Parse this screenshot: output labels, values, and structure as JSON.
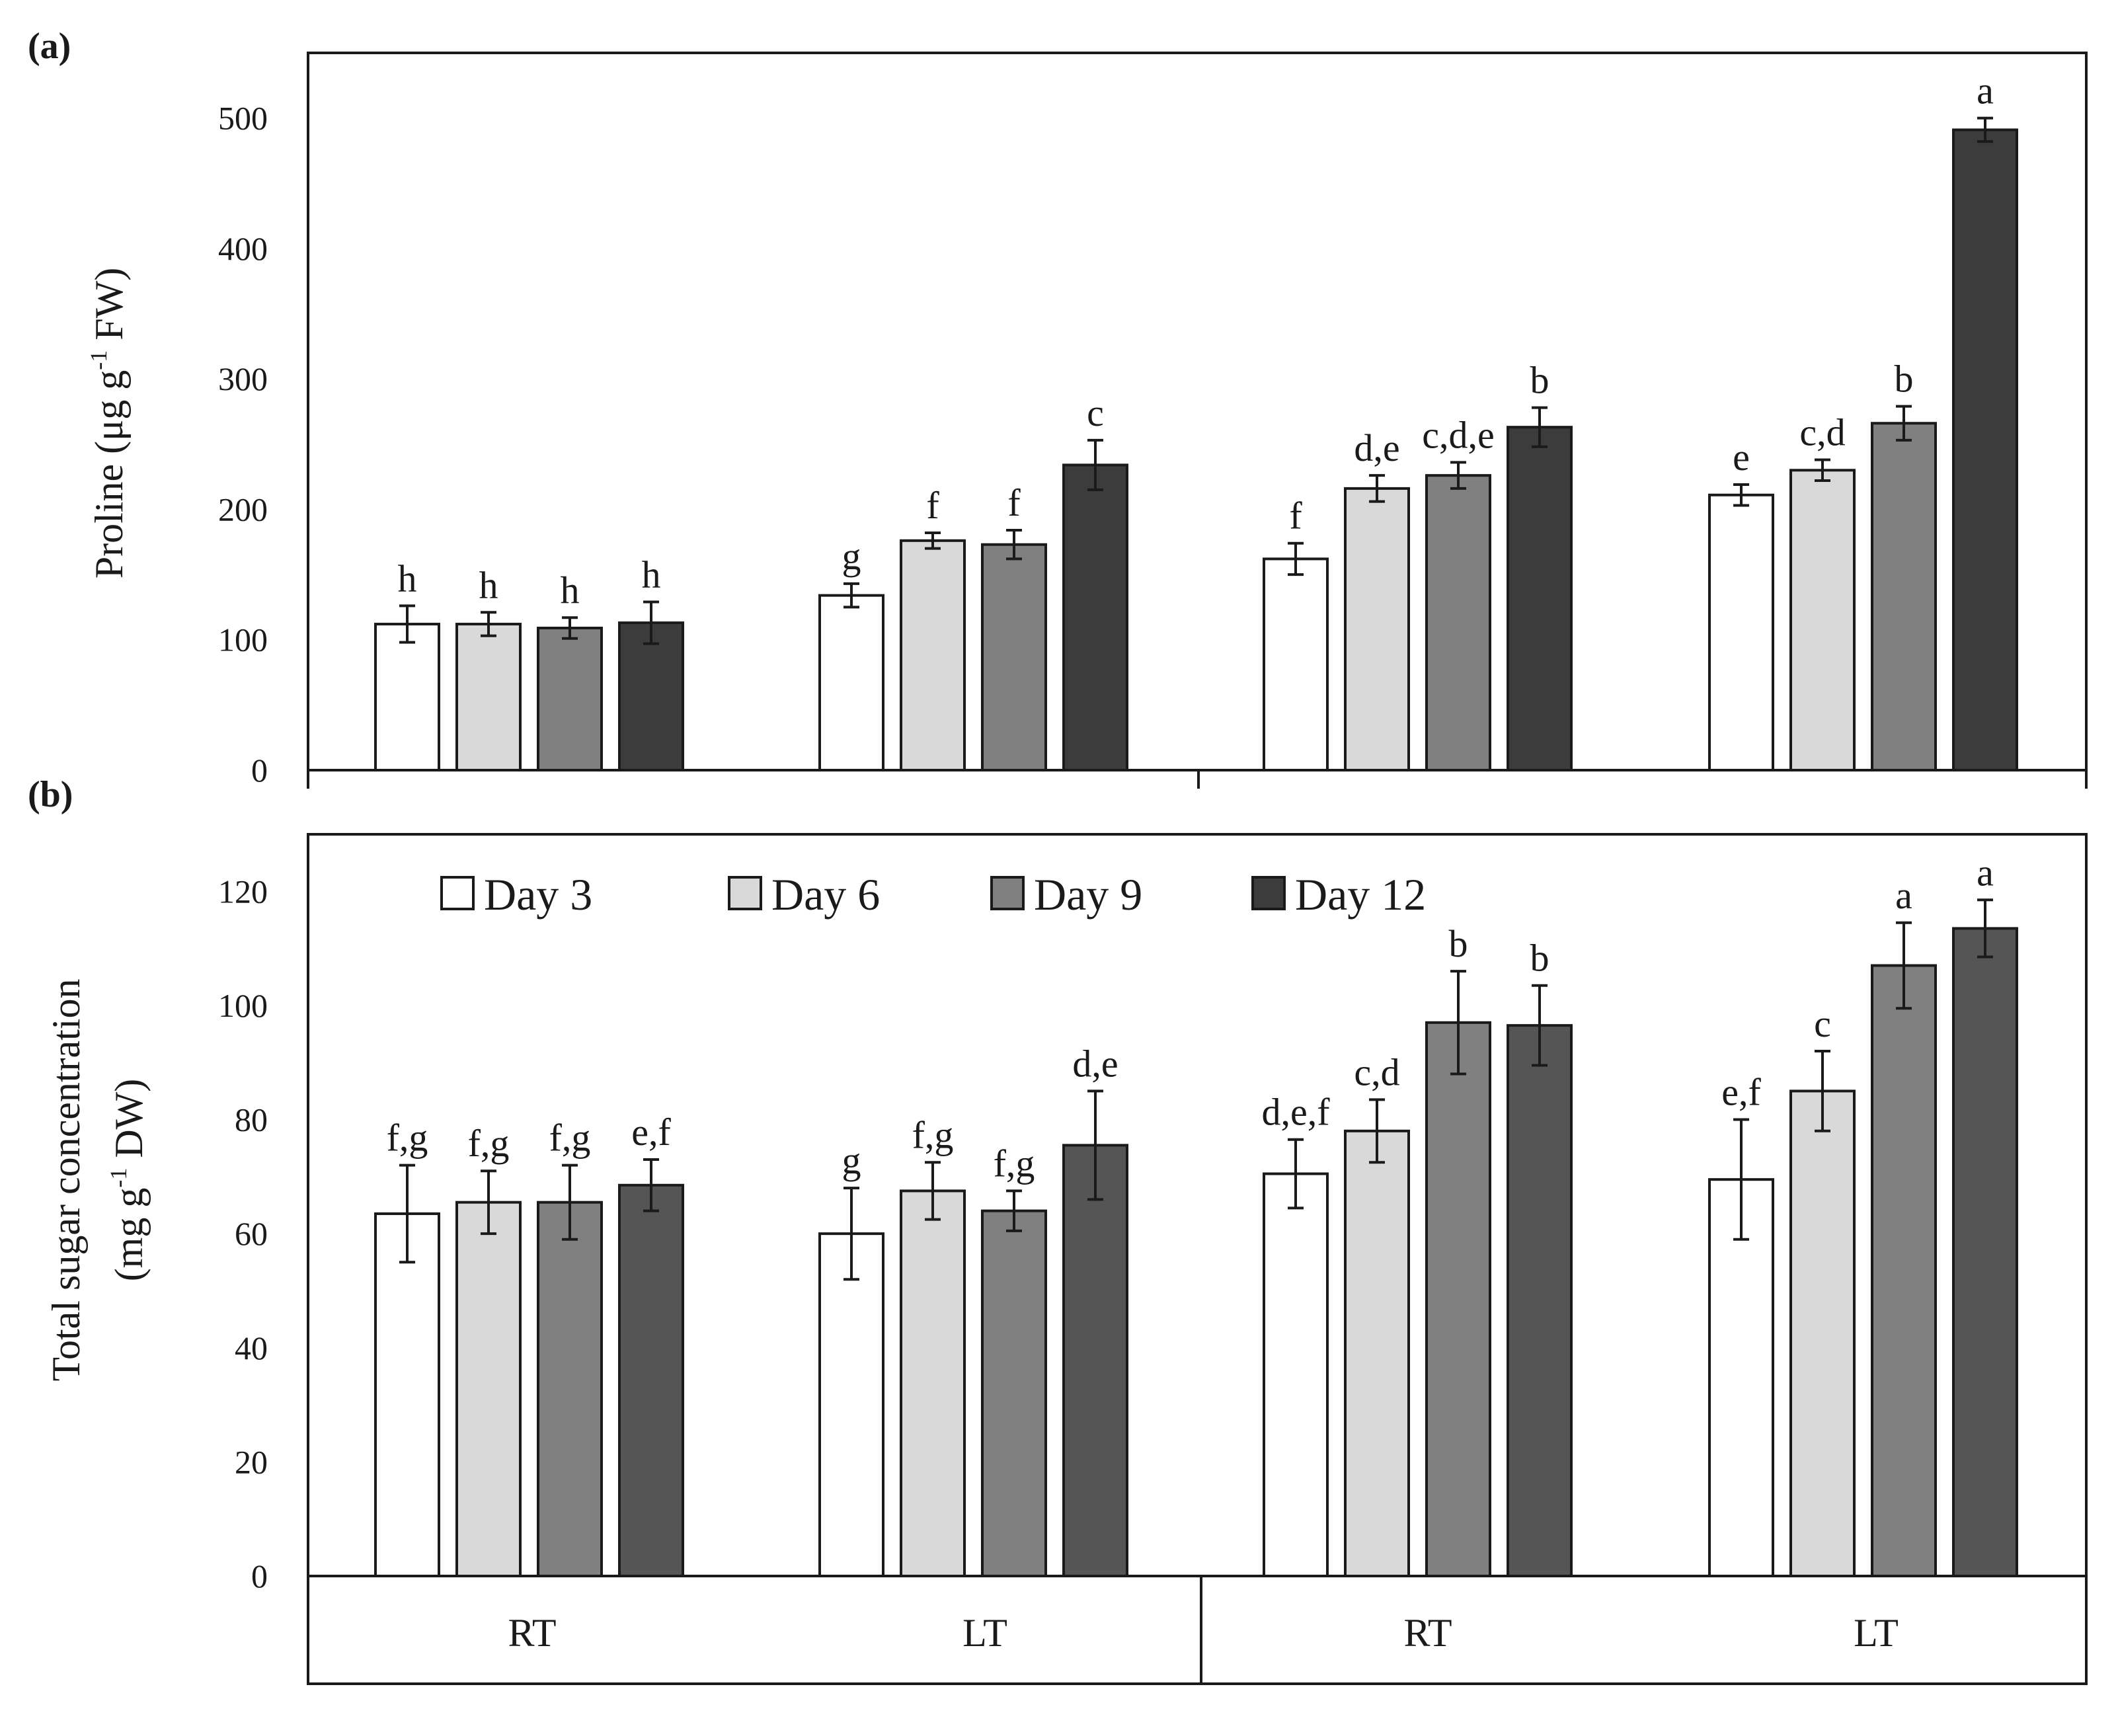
{
  "colors": {
    "Day 3": "#ffffff",
    "Day 6": "#d9d9d9",
    "Day 9": "#808080",
    "Day 12a": "#3c3c3c",
    "Day 12b": "#555555",
    "stroke": "#1a1a1a"
  },
  "legend": [
    "Day 3",
    "Day 6",
    "Day 9",
    "Day 12"
  ],
  "categories": [
    "RT",
    "LT",
    "RT",
    "LT"
  ],
  "chart_data": [
    {
      "type": "bar",
      "panel": "(a)",
      "ylabel": "Proline (μg g-1 FW)",
      "ylabel_parts": {
        "pre": "Proline (μg g",
        "sup": "-1",
        "post": " FW)"
      },
      "ylim": [
        0,
        550
      ],
      "yticks": [
        0,
        100,
        200,
        300,
        400,
        500
      ],
      "categories": [
        "RT",
        "LT",
        "RT",
        "LT"
      ],
      "series": [
        {
          "name": "Day 3",
          "values": [
            112,
            134,
            162,
            211
          ],
          "errors": [
            14,
            9,
            12,
            8
          ],
          "letters": [
            "h",
            "g",
            "f",
            "e"
          ]
        },
        {
          "name": "Day 6",
          "values": [
            112,
            176,
            216,
            230
          ],
          "errors": [
            9,
            6,
            10,
            8
          ],
          "letters": [
            "h",
            "f",
            "d,e",
            "c,d"
          ]
        },
        {
          "name": "Day 9",
          "values": [
            109,
            173,
            226,
            266
          ],
          "errors": [
            8,
            11,
            10,
            13
          ],
          "letters": [
            "h",
            "f",
            "c,d,e",
            "b"
          ]
        },
        {
          "name": "Day 12",
          "values": [
            113,
            234,
            263,
            491
          ],
          "errors": [
            16,
            19,
            15,
            9
          ],
          "letters": [
            "h",
            "c",
            "b",
            "a"
          ]
        }
      ]
    },
    {
      "type": "bar",
      "panel": "(b)",
      "ylabel_lines": [
        "Total sugar concentration",
        "(mg g-1 DW)"
      ],
      "ylabel_parts": {
        "line1": "Total sugar concentration",
        "pre": "(mg g",
        "sup": "-1",
        "post": " DW)"
      },
      "ylim": [
        0,
        130
      ],
      "yticks": [
        0,
        20,
        40,
        60,
        80,
        100,
        120
      ],
      "categories": [
        "RT",
        "LT",
        "RT",
        "LT"
      ],
      "series": [
        {
          "name": "Day 3",
          "values": [
            63.5,
            60,
            70.5,
            69.5
          ],
          "errors": [
            8.5,
            8,
            6,
            10.5
          ],
          "letters": [
            "f,g",
            "g",
            "d,e,f",
            "e,f"
          ]
        },
        {
          "name": "Day 6",
          "values": [
            65.5,
            67.5,
            78,
            85
          ],
          "errors": [
            5.5,
            5,
            5.5,
            7
          ],
          "letters": [
            "f,g",
            "f,g",
            "c,d",
            "c"
          ]
        },
        {
          "name": "Day 9",
          "values": [
            65.5,
            64,
            97,
            107
          ],
          "errors": [
            6.5,
            3.5,
            9,
            7.5
          ],
          "letters": [
            "f,g",
            "f,g",
            "b",
            "a"
          ]
        },
        {
          "name": "Day 12",
          "values": [
            68.5,
            75.5,
            96.5,
            113.5
          ],
          "errors": [
            4.5,
            9.5,
            7,
            5
          ],
          "letters": [
            "e,f",
            "d,e",
            "b",
            "a"
          ]
        }
      ]
    }
  ]
}
